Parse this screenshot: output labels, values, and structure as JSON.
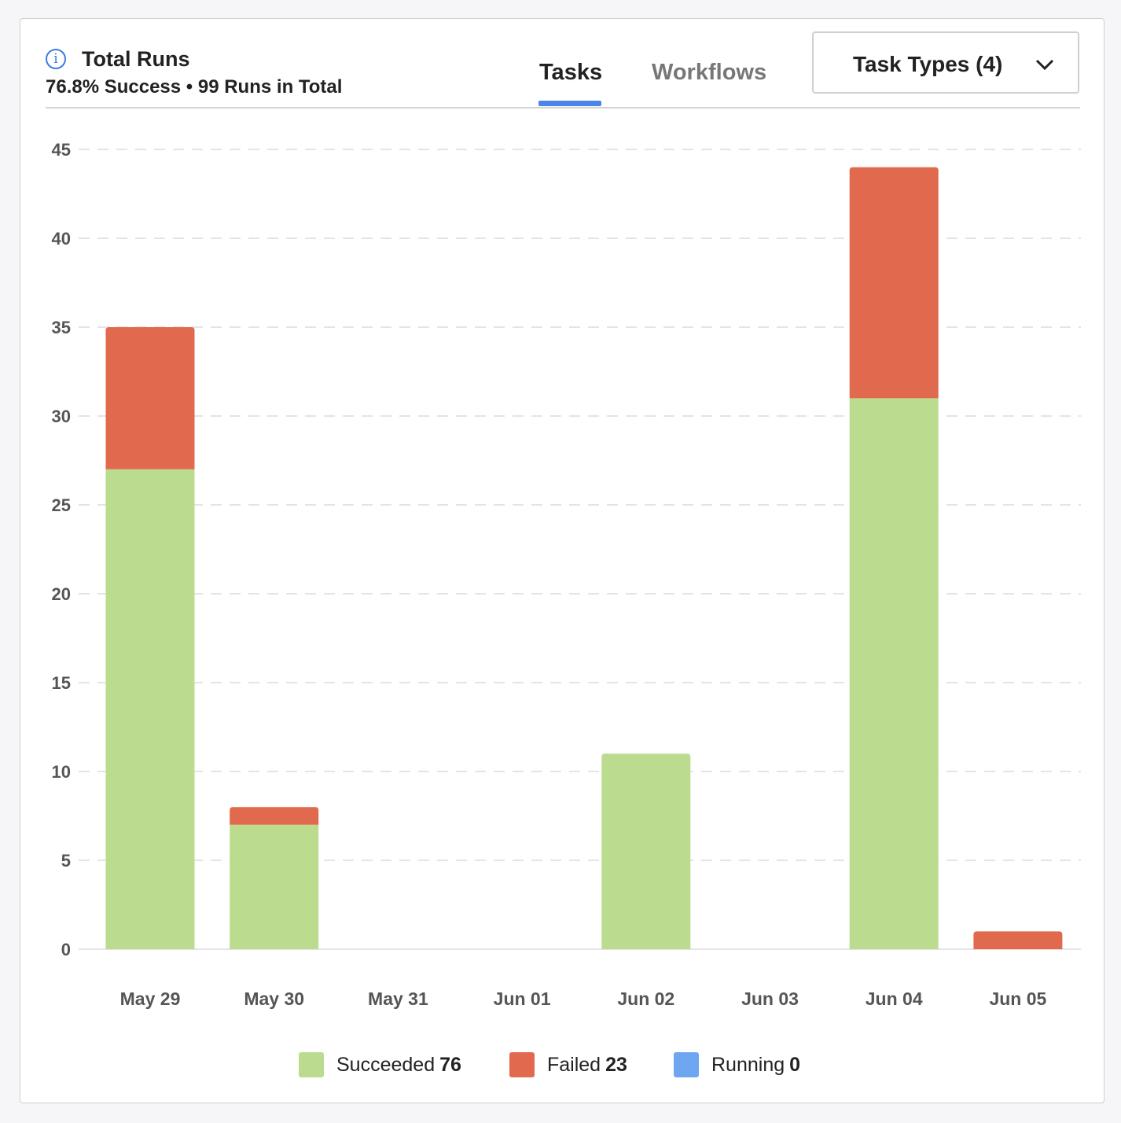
{
  "header": {
    "title": "Total Runs",
    "subtitle": "76.8% Success • 99 Runs in Total",
    "tabs": [
      "Tasks",
      "Workflows"
    ],
    "active_tab": "Tasks",
    "dropdown_label": "Task Types (4)"
  },
  "legend": [
    {
      "label": "Succeeded",
      "count": "76",
      "color": "#bbdc8f"
    },
    {
      "label": "Failed",
      "count": "23",
      "color": "#e1694e"
    },
    {
      "label": "Running",
      "count": "0",
      "color": "#6ea6f2"
    }
  ],
  "chart_data": {
    "type": "bar",
    "stacked": true,
    "categories": [
      "May 29",
      "May 30",
      "May 31",
      "Jun 01",
      "Jun 02",
      "Jun 03",
      "Jun 04",
      "Jun 05"
    ],
    "series": [
      {
        "name": "Succeeded",
        "color": "#bbdc8f",
        "values": [
          27,
          7,
          0,
          0,
          11,
          0,
          31,
          0
        ]
      },
      {
        "name": "Failed",
        "color": "#e1694e",
        "values": [
          8,
          1,
          0,
          0,
          0,
          0,
          13,
          1
        ]
      },
      {
        "name": "Running",
        "color": "#6ea6f2",
        "values": [
          0,
          0,
          0,
          0,
          0,
          0,
          0,
          0
        ]
      }
    ],
    "yticks": [
      "0",
      "5",
      "10",
      "15",
      "20",
      "25",
      "30",
      "35",
      "40",
      "45"
    ],
    "ylim": [
      0,
      45
    ],
    "grid": true,
    "legend_position": "bottom"
  }
}
